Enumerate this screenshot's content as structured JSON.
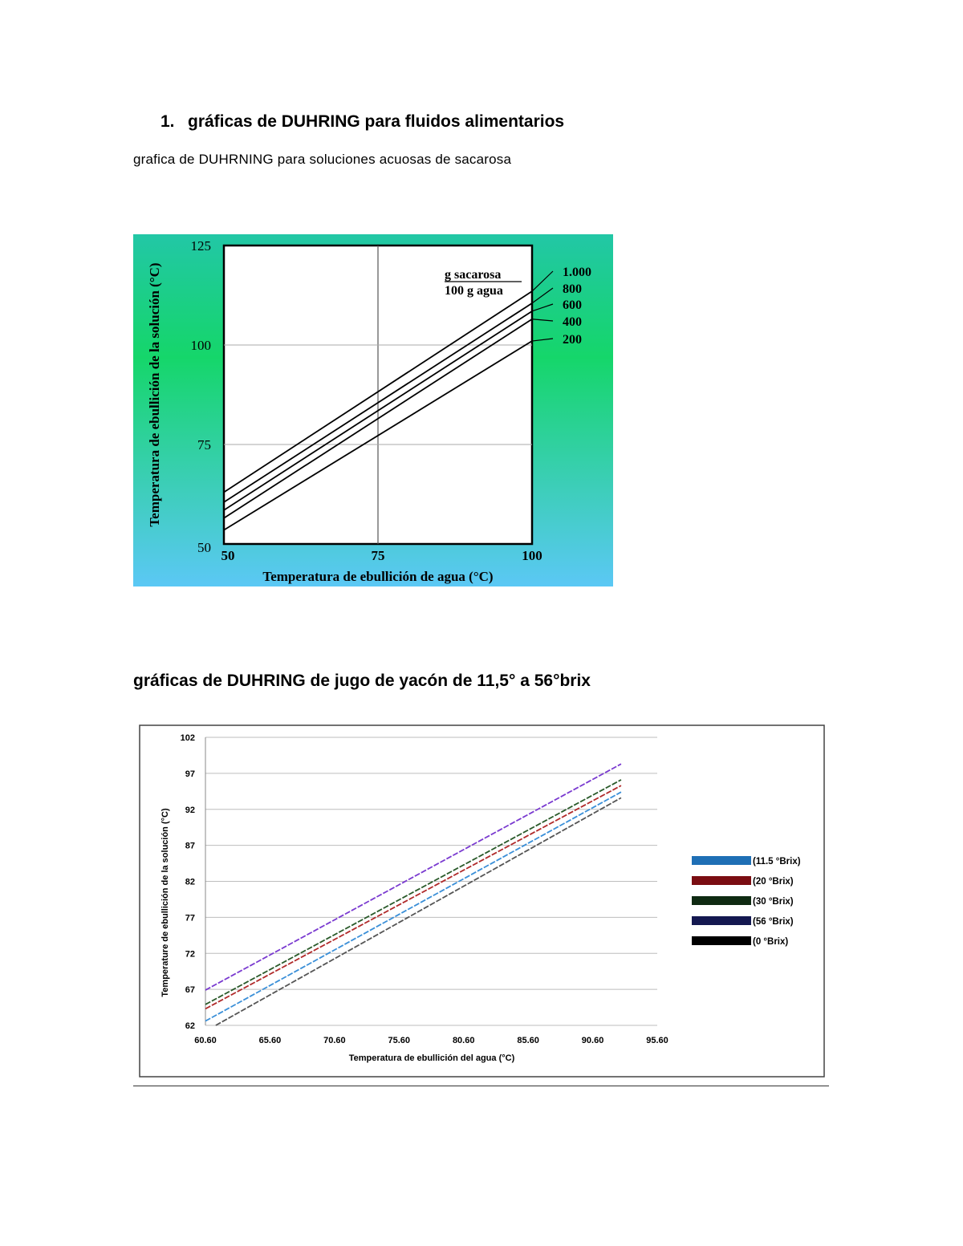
{
  "section1": {
    "number": "1.",
    "title": "gráficas de DUHRING para fluidos alimentarios"
  },
  "subtitle1": "grafica de DUHRNING para soluciones acuosas de sacarosa",
  "section2_title": "gráficas de DUHRING de jugo de yacón de 11,5° a 56°brix",
  "chart_data": [
    {
      "type": "line",
      "title": "",
      "xlabel": "Temperatura de ebullición de agua (°C)",
      "ylabel": "Temperatura de ebullición de la solución (°C)",
      "xlim": [
        50,
        100
      ],
      "ylim": [
        50,
        125
      ],
      "x_ticks": [
        "50",
        "75",
        "100"
      ],
      "y_ticks": [
        "50",
        "75",
        "100",
        "125"
      ],
      "grid": true,
      "legend_title_num": "g sacarosa",
      "legend_title_den": "100 g agua",
      "background": [
        "#22c7a6",
        "#15d66a",
        "#5bc8f5"
      ],
      "series": [
        {
          "name": "1.000",
          "x": [
            50,
            100
          ],
          "y": [
            63,
            113.5
          ]
        },
        {
          "name": "800",
          "x": [
            50,
            100
          ],
          "y": [
            60.5,
            110.5
          ]
        },
        {
          "name": "600",
          "x": [
            50,
            100
          ],
          "y": [
            58.5,
            108.5
          ]
        },
        {
          "name": "400",
          "x": [
            50,
            100
          ],
          "y": [
            56.5,
            106.5
          ]
        },
        {
          "name": "200",
          "x": [
            50,
            100
          ],
          "y": [
            53.5,
            101
          ]
        }
      ]
    },
    {
      "type": "line",
      "title": "",
      "xlabel": "Temperatura de ebullición del agua (°C)",
      "ylabel": "Temperature de ebullición de la solución (°C)",
      "xlim": [
        60.6,
        95.6
      ],
      "ylim": [
        62,
        102
      ],
      "x_ticks": [
        "60.60",
        "65.60",
        "70.60",
        "75.60",
        "80.60",
        "85.60",
        "90.60",
        "95.60"
      ],
      "y_ticks": [
        "62",
        "67",
        "72",
        "77",
        "82",
        "87",
        "92",
        "97",
        "102"
      ],
      "grid": true,
      "legend_position": "right",
      "series": [
        {
          "name": "(11.5 °Brix)",
          "color": "#1f6fb5",
          "line_color": "#3a8fd8",
          "x": [
            60.6,
            92.8
          ],
          "y": [
            62.6,
            94.4
          ]
        },
        {
          "name": "(20 °Brix)",
          "color": "#7a0d12",
          "line_color": "#b02a2a",
          "x": [
            60.6,
            92.8
          ],
          "y": [
            64.3,
            95.3
          ]
        },
        {
          "name": "(30 °Brix)",
          "color": "#0f2a12",
          "line_color": "#2a5a2a",
          "x": [
            60.6,
            92.8
          ],
          "y": [
            64.9,
            96.1
          ]
        },
        {
          "name": "(56 °Brix)",
          "color": "#141850",
          "line_color": "#7a3ad0",
          "x": [
            60.6,
            92.8
          ],
          "y": [
            66.9,
            98.3
          ]
        },
        {
          "name": "(0 °Brix)",
          "color": "#000000",
          "line_color": "#555555",
          "x": [
            61.4,
            92.8
          ],
          "y": [
            62,
            93.6
          ]
        }
      ]
    }
  ]
}
